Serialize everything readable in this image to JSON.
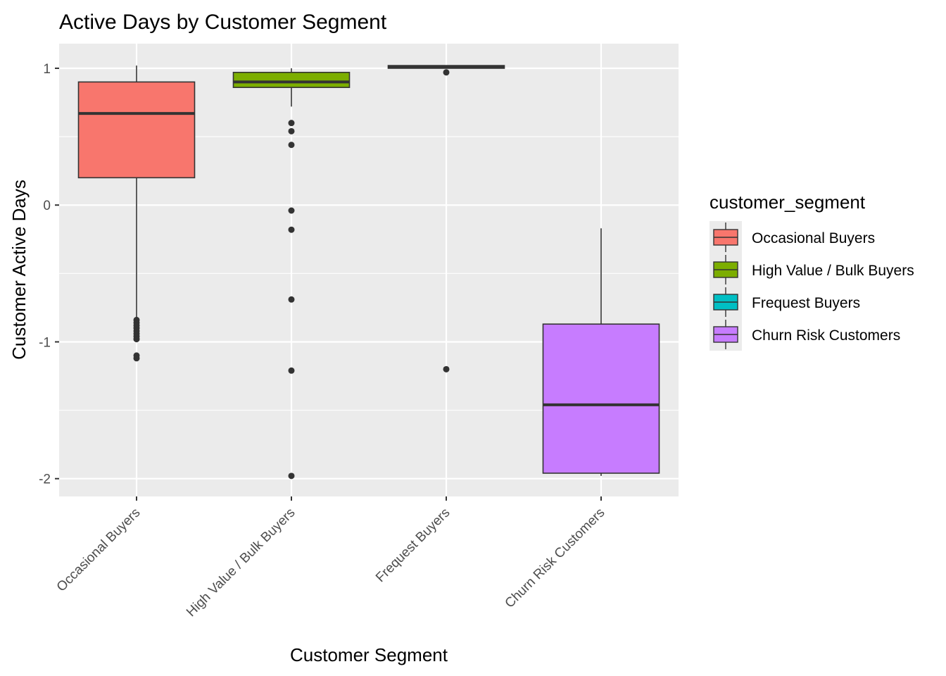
{
  "chart_data": {
    "type": "boxplot",
    "title": "Active Days by Customer Segment",
    "xlabel": "Customer Segment",
    "ylabel": "Customer Active Days",
    "ylim": [
      -2.13,
      1.18
    ],
    "yticks": [
      1,
      0,
      -1,
      -2
    ],
    "ytick_labels": [
      "1",
      "0",
      "-1",
      "-2"
    ],
    "grid": true,
    "legend": {
      "title": "customer_segment",
      "position": "right"
    },
    "categories": [
      "Occasional Buyers",
      "High Value / Bulk Buyers",
      "Frequest Buyers",
      "Churn Risk Customers"
    ],
    "series": [
      {
        "name": "Occasional Buyers",
        "color": "#F8766D",
        "q1": 0.2,
        "median": 0.67,
        "q3": 0.9,
        "whisker_low": -0.83,
        "whisker_high": 1.02,
        "outliers": [
          -0.84,
          -0.86,
          -0.88,
          -0.9,
          -0.92,
          -0.94,
          -0.96,
          -0.98,
          -1.1,
          -1.12
        ]
      },
      {
        "name": "High Value / Bulk Buyers",
        "color": "#7CAE00",
        "q1": 0.86,
        "median": 0.9,
        "q3": 0.97,
        "whisker_low": 0.72,
        "whisker_high": 1.0,
        "outliers": [
          0.6,
          0.54,
          0.44,
          -0.04,
          -0.18,
          -0.69,
          -1.21,
          -1.98
        ]
      },
      {
        "name": "Frequest Buyers",
        "color": "#00BFC4",
        "q1": 1.0,
        "median": 1.01,
        "q3": 1.02,
        "whisker_low": 1.0,
        "whisker_high": 1.02,
        "outliers": [
          0.97,
          -1.2
        ]
      },
      {
        "name": "Churn Risk Customers",
        "color": "#C77CFF",
        "q1": -1.96,
        "median": -1.46,
        "q3": -0.87,
        "whisker_low": -1.98,
        "whisker_high": -0.17,
        "outliers": []
      }
    ]
  }
}
